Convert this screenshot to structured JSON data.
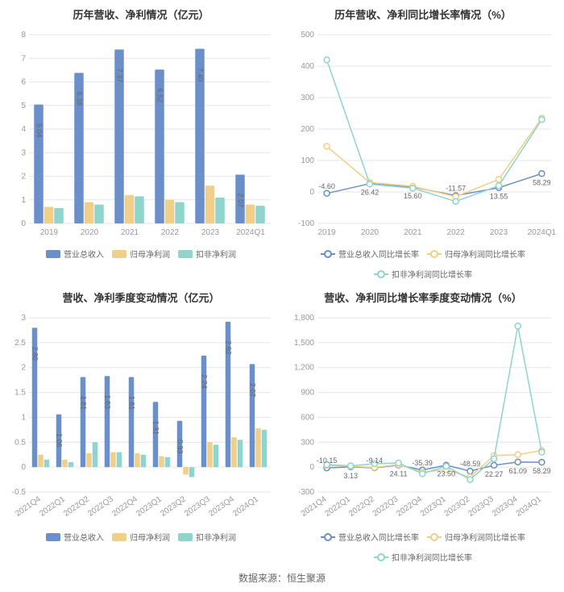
{
  "source_text": "数据来源：恒生聚源",
  "colors": {
    "series_blue": "#6a8fc9",
    "series_yellow": "#f0cf88",
    "series_teal": "#8fd4cd",
    "grid": "#e6e6e6",
    "axis": "#cccccc",
    "text": "#666666"
  },
  "panel1": {
    "title": "历年营收、净利情况（亿元）",
    "type": "bar",
    "categories": [
      "2019",
      "2020",
      "2021",
      "2022",
      "2023",
      "2024Q1"
    ],
    "series": [
      {
        "name": "营业总收入",
        "color": "#6a8fc9",
        "values": [
          5.04,
          6.38,
          7.37,
          6.52,
          7.4,
          2.07
        ]
      },
      {
        "name": "归母净利润",
        "color": "#f0cf88",
        "values": [
          0.7,
          0.9,
          1.2,
          1.0,
          1.6,
          0.8
        ]
      },
      {
        "name": "扣非净利润",
        "color": "#8fd4cd",
        "values": [
          0.65,
          0.8,
          1.15,
          0.9,
          1.1,
          0.75
        ]
      }
    ],
    "ylim": [
      0,
      8
    ],
    "ytick_step": 1,
    "labels": [
      "5.04",
      "6.38",
      "7.37",
      "6.52",
      "7.40",
      "2.07"
    ]
  },
  "panel2": {
    "title": "历年营收、净利同比增长率情况（%）",
    "type": "line",
    "categories": [
      "2019",
      "2020",
      "2021",
      "2022",
      "2023",
      "2024Q1"
    ],
    "series": [
      {
        "name": "营业总收入同比增长率",
        "color": "#6a8fc9",
        "values": [
          -4.6,
          26.42,
          15.6,
          -11.57,
          13.55,
          58.29
        ]
      },
      {
        "name": "归母净利润同比增长率",
        "color": "#f0cf88",
        "values": [
          145,
          30,
          18,
          -15,
          40,
          235
        ]
      },
      {
        "name": "扣非净利润同比增长率",
        "color": "#8fd4cd",
        "values": [
          420,
          25,
          12,
          -30,
          20,
          230
        ]
      }
    ],
    "ylim": [
      -100,
      500
    ],
    "ytick_step": 100,
    "labels": [
      "-4.60",
      "26.42",
      "15.60",
      "-11.57",
      "13.55",
      "58.29"
    ]
  },
  "panel3": {
    "title": "营收、净利季度变动情况（亿元）",
    "type": "bar",
    "categories": [
      "2021Q4",
      "2022Q1",
      "2022Q2",
      "2022Q3",
      "2022Q4",
      "2023Q1",
      "2023Q2",
      "2023Q3",
      "2023Q4",
      "2024Q1"
    ],
    "series": [
      {
        "name": "营业总收入",
        "color": "#6a8fc9",
        "values": [
          2.8,
          1.06,
          1.81,
          1.83,
          1.81,
          1.31,
          0.93,
          2.24,
          2.92,
          2.07
        ]
      },
      {
        "name": "归母净利润",
        "color": "#f0cf88",
        "values": [
          0.25,
          0.15,
          0.28,
          0.3,
          0.28,
          0.22,
          -0.15,
          0.5,
          0.6,
          0.78
        ]
      },
      {
        "name": "扣非净利润",
        "color": "#8fd4cd",
        "values": [
          0.15,
          0.1,
          0.5,
          0.3,
          0.25,
          0.2,
          -0.2,
          0.45,
          0.55,
          0.75
        ]
      }
    ],
    "ylim": [
      -0.5,
      3
    ],
    "ytick_step": 0.5,
    "labels": [
      "2.80",
      "1.06",
      "1.81",
      "1.83",
      "1.81",
      "1.31",
      "0.93",
      "2.24",
      "2.92",
      "2.07"
    ]
  },
  "panel4": {
    "title": "营收、净利同比增长率季度变动情况（%）",
    "type": "line",
    "categories": [
      "2021Q4",
      "2022Q1",
      "2022Q2",
      "2022Q3",
      "2022Q4",
      "2023Q1",
      "2023Q2",
      "2023Q3",
      "2023Q4",
      "2024Q1"
    ],
    "series": [
      {
        "name": "营业总收入同比增长率",
        "color": "#6a8fc9",
        "values": [
          -10.15,
          3.13,
          -9.14,
          24.11,
          -35.39,
          23.5,
          -48.59,
          22.27,
          61.09,
          58.29
        ]
      },
      {
        "name": "归母净利润同比增长率",
        "color": "#f0cf88",
        "values": [
          20,
          10,
          -5,
          30,
          -60,
          -30,
          -120,
          140,
          150,
          200
        ]
      },
      {
        "name": "扣非净利润同比增长率",
        "color": "#8fd4cd",
        "values": [
          30,
          15,
          40,
          50,
          -80,
          10,
          -150,
          100,
          1700,
          180
        ]
      }
    ],
    "ylim": [
      -300,
      1800
    ],
    "ytick_step": 300,
    "labels": [
      "-10.15",
      "3.13",
      "-9.14",
      "24.11",
      "-35.39",
      "23.50",
      "-48.59",
      "22.27",
      "61.09",
      "58.29"
    ]
  }
}
